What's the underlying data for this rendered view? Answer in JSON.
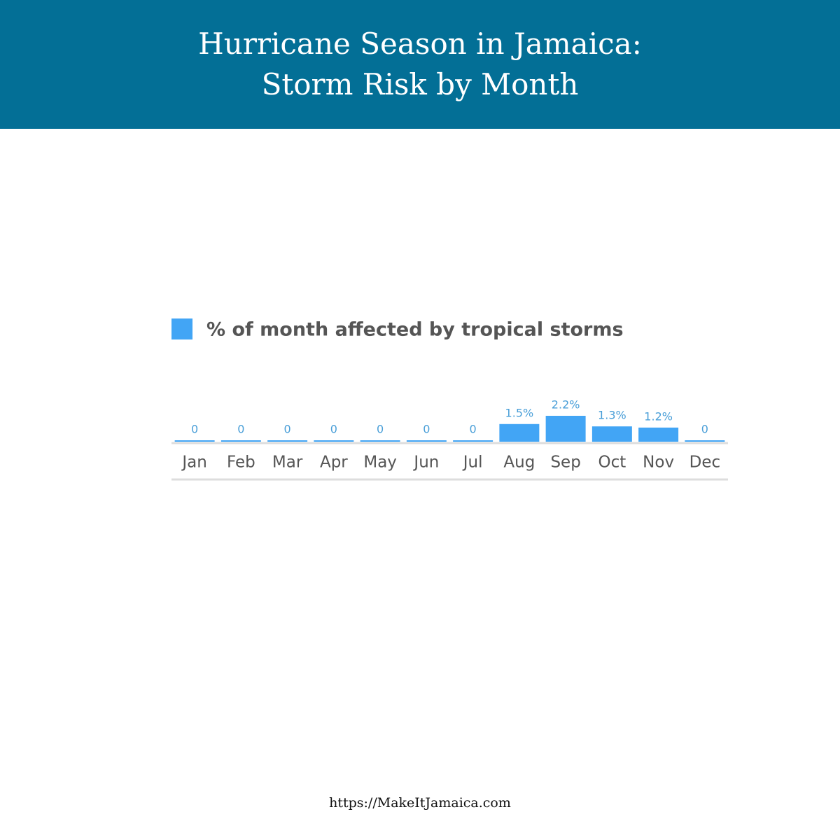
{
  "chart_data": {
    "type": "bar",
    "title": "Hurricane Season in Jamaica: Storm Risk by Month",
    "legend": "% of month affected by tropical storms",
    "categories": [
      "Jan",
      "Feb",
      "Mar",
      "Apr",
      "May",
      "Jun",
      "Jul",
      "Aug",
      "Sep",
      "Oct",
      "Nov",
      "Dec"
    ],
    "values": [
      0,
      0,
      0,
      0,
      0,
      0,
      0,
      1.5,
      2.2,
      1.3,
      1.2,
      0
    ],
    "value_labels": [
      "0",
      "0",
      "0",
      "0",
      "0",
      "0",
      "0",
      "1.5%",
      "2.2%",
      "1.3%",
      "1.2%",
      "0"
    ],
    "color": "#42a5f5",
    "source": "https://MakeItJamaica.com"
  }
}
